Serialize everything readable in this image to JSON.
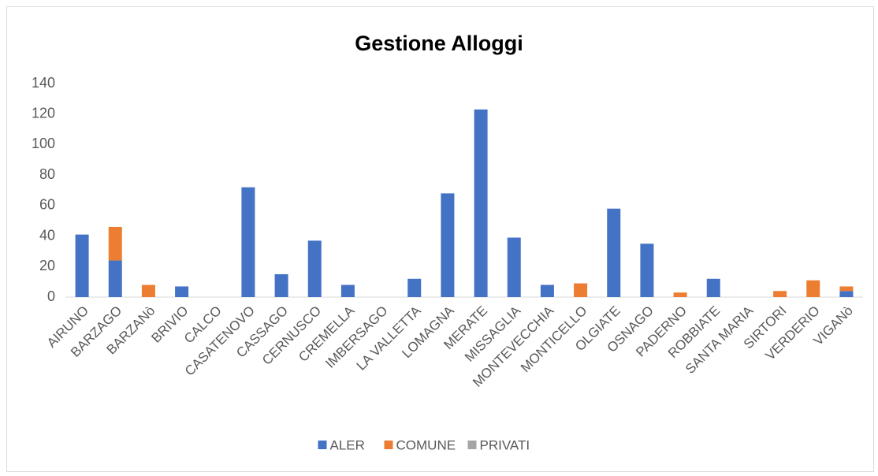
{
  "chart_data": {
    "type": "stacked_bar",
    "title": "Gestione Alloggi",
    "categories": [
      "AIRUNO",
      "BARZAGO",
      "BARZANò",
      "BRIVIO",
      "CALCO",
      "CASATENOVO",
      "CASSAGO",
      "CERNUSCO",
      "CREMELLA",
      "IMBERSAGO",
      "LA VALLETTA",
      "LOMAGNA",
      "MERATE",
      "MISSAGLIA",
      "MONTEVECCHIA",
      "MONTICELLO",
      "OLGIATE",
      "OSNAGO",
      "PADERNO",
      "ROBBIATE",
      "SANTA MARIA",
      "SIRTORI",
      "VERDERIO",
      "VIGANò"
    ],
    "series": [
      {
        "name": "ALER",
        "color": "#4472c4",
        "values": [
          41,
          24,
          0,
          7,
          0,
          72,
          15,
          37,
          8,
          0,
          12,
          68,
          123,
          39,
          8,
          0,
          58,
          35,
          0,
          12,
          0,
          0,
          0,
          4
        ]
      },
      {
        "name": "COMUNE",
        "color": "#ed7d31",
        "values": [
          0,
          22,
          8,
          0,
          0,
          0,
          0,
          0,
          0,
          0,
          0,
          0,
          0,
          0,
          0,
          9,
          0,
          0,
          3,
          0,
          0,
          4,
          11,
          3
        ]
      },
      {
        "name": "PRIVATI",
        "color": "#a5a5a5",
        "values": [
          0,
          0,
          0,
          0,
          0,
          0,
          0,
          0,
          0,
          0,
          0,
          0,
          0,
          0,
          0,
          0,
          0,
          0,
          0,
          0,
          0,
          0,
          0,
          0
        ]
      }
    ],
    "ylim": [
      0,
      140
    ],
    "yticks": [
      0,
      20,
      40,
      60,
      80,
      100,
      120,
      140
    ],
    "grid": false,
    "legend": "bottom"
  }
}
